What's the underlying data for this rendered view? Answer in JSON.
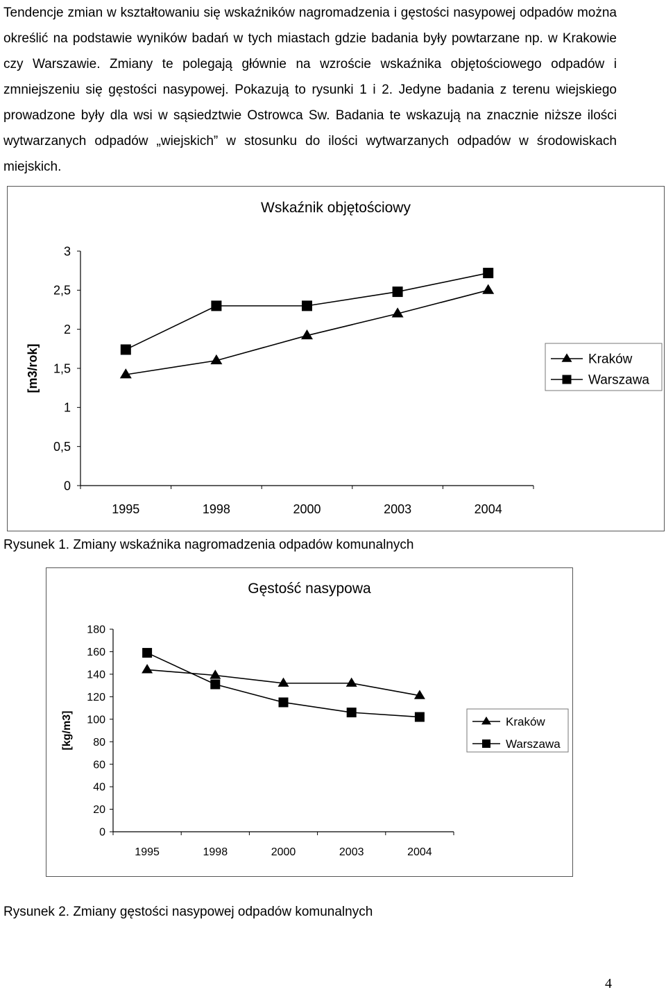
{
  "body_text": "Tendencje zmian w kształtowaniu się wskaźników nagromadzenia i gęstości nasypowej odpadów można określić na podstawie wyników badań w tych miastach gdzie badania były powtarzane np. w Krakowie czy Warszawie. Zmiany te polegają głównie na wzroście wskaźnika objętościowego odpadów i zmniejszeniu się gęstości nasypowej. Pokazują to rysunki 1 i 2. Jedyne badania z terenu wiejskiego prowadzone były dla wsi w sąsiedztwie Ostrowca Sw. Badania te wskazują na znacznie niższe ilości wytwarzanych odpadów „wiejskich” w stosunku do ilości wytwarzanych odpadów w środowiskach miejskich.",
  "chart_data": [
    {
      "type": "line",
      "title": "Wskaźnik objętościowy",
      "ylabel": "[m3/rok]",
      "xlabel": "",
      "categories": [
        "1995",
        "1998",
        "2000",
        "2003",
        "2004"
      ],
      "ylim": [
        0,
        3
      ],
      "yticks": [
        "0",
        "0,5",
        "1",
        "1,5",
        "2",
        "2,5",
        "3"
      ],
      "grid": false,
      "legend": "right",
      "series": [
        {
          "name": "Kraków",
          "marker": "triangle",
          "values": [
            1.42,
            1.6,
            1.92,
            2.2,
            2.5
          ]
        },
        {
          "name": "Warszawa",
          "marker": "square",
          "values": [
            1.74,
            2.3,
            2.3,
            2.48,
            2.72
          ]
        }
      ]
    },
    {
      "type": "line",
      "title": "Gęstość nasypowa",
      "ylabel": "[kg/m3]",
      "xlabel": "",
      "categories": [
        "1995",
        "1998",
        "2000",
        "2003",
        "2004"
      ],
      "ylim": [
        0,
        180
      ],
      "yticks": [
        "0",
        "20",
        "40",
        "60",
        "80",
        "100",
        "120",
        "140",
        "160",
        "180"
      ],
      "grid": false,
      "legend": "right",
      "series": [
        {
          "name": "Kraków",
          "marker": "triangle",
          "values": [
            144,
            139,
            132,
            132,
            121
          ]
        },
        {
          "name": "Warszawa",
          "marker": "square",
          "values": [
            159,
            131,
            115,
            106,
            102
          ]
        }
      ]
    }
  ],
  "captions": {
    "fig1": "Rysunek 1. Zmiany wskaźnika nagromadzenia odpadów komunalnych",
    "fig2": "Rysunek 2. Zmiany gęstości nasypowej odpadów komunalnych"
  },
  "page_number": "4"
}
